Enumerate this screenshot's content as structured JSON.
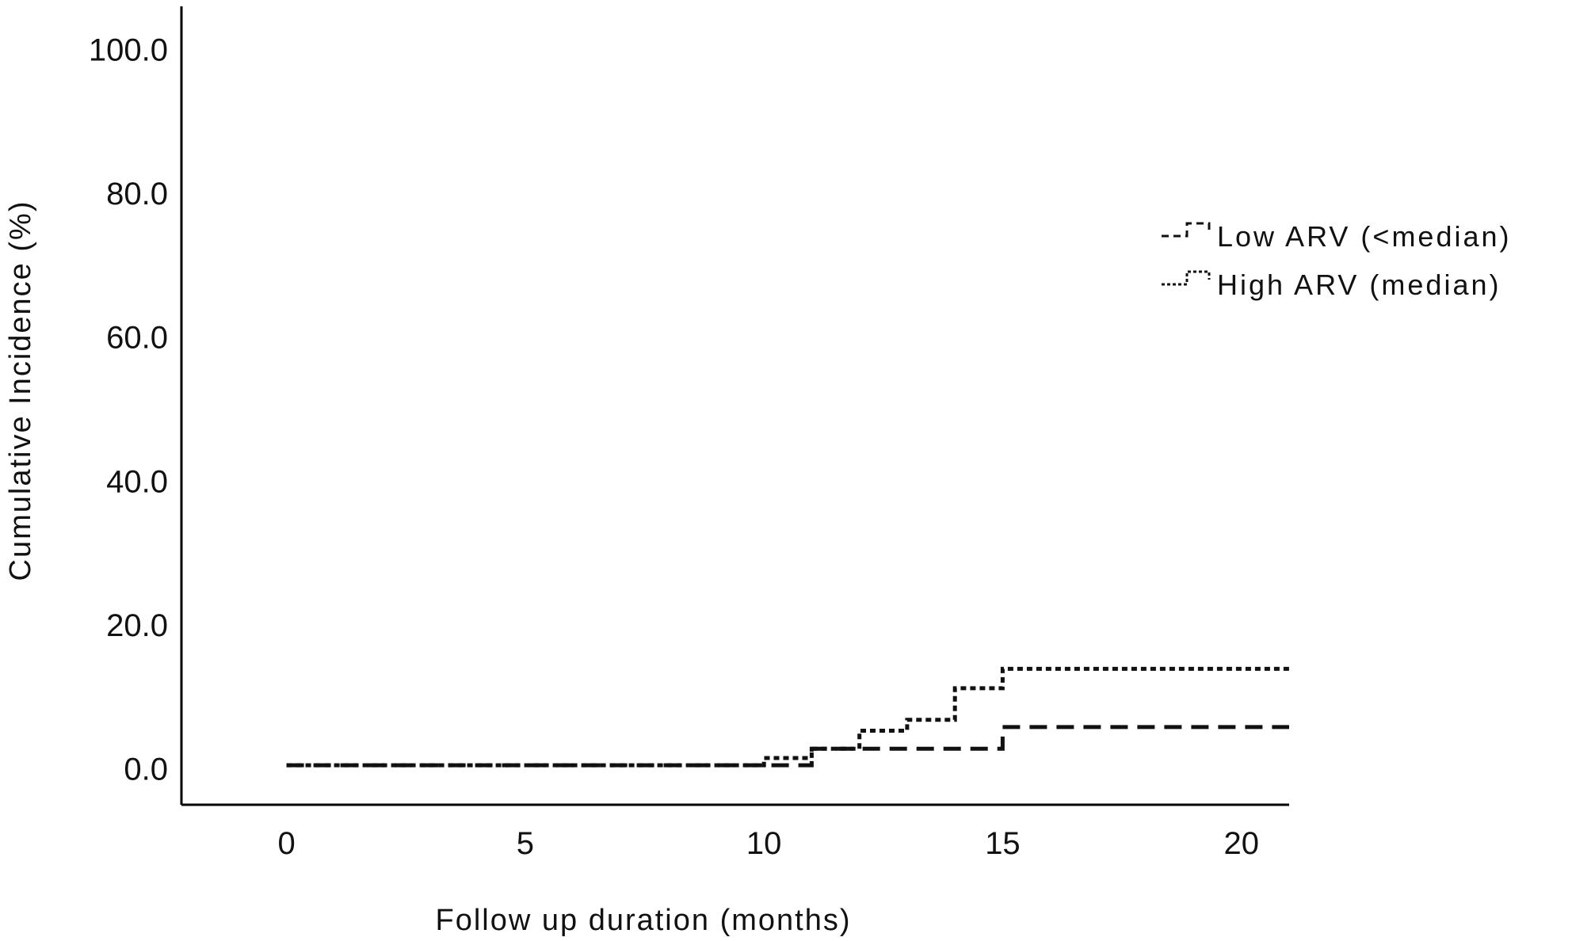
{
  "chart_data": {
    "type": "line",
    "step": true,
    "xlabel": "Follow up duration (months)",
    "ylabel": "Cumulative Incidence (%)",
    "xlim": [
      -2.2,
      21.0
    ],
    "ylim": [
      -5.0,
      106.0
    ],
    "xticks": [
      0,
      5,
      10,
      15,
      20
    ],
    "xtick_labels": [
      "0",
      "5",
      "10",
      "15",
      "20"
    ],
    "yticks": [
      0,
      20,
      40,
      60,
      80,
      100
    ],
    "ytick_labels": [
      "0.0",
      "20.0",
      "40.0",
      "60.0",
      "80.0",
      "100.0"
    ],
    "grid": false,
    "legend_position": "top-right",
    "series": [
      {
        "name": "Low ARV (<median)",
        "dash": "22,12",
        "x": [
          0,
          11,
          15,
          21
        ],
        "y": [
          0.5,
          2.8,
          5.8,
          5.8
        ]
      },
      {
        "name": "High ARV (median)",
        "dash": "7,5",
        "x": [
          0,
          10,
          11,
          12,
          13,
          14,
          15,
          21
        ],
        "y": [
          0.5,
          1.5,
          2.8,
          5.3,
          6.8,
          11.2,
          13.9,
          13.9
        ]
      }
    ]
  }
}
